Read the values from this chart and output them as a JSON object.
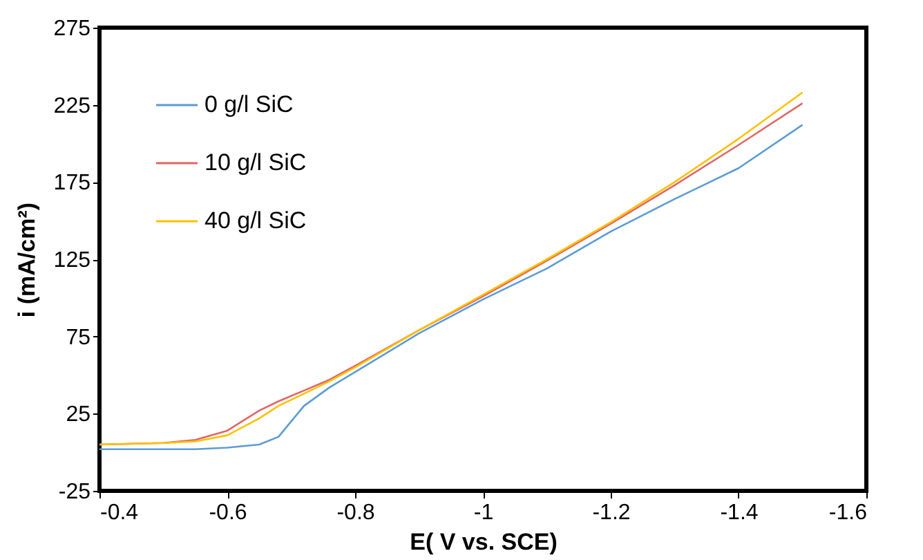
{
  "chart_data": {
    "type": "line",
    "xlabel": "E( V vs. SCE)",
    "ylabel": "i (mA/cm²)",
    "xlim": [
      -0.4,
      -1.6
    ],
    "xticks": [
      -0.4,
      -0.6,
      -0.8,
      -1,
      -1.2,
      -1.4,
      -1.6
    ],
    "ylim": [
      -25,
      275
    ],
    "yticks": [
      -25,
      25,
      75,
      125,
      175,
      225,
      275
    ],
    "legend": "top left",
    "grid": false,
    "marker": "none",
    "line_style": "solid",
    "x": [
      -0.4,
      -0.5,
      -0.55,
      -0.6,
      -0.65,
      -0.68,
      -0.72,
      -0.76,
      -0.8,
      -0.9,
      -1.0,
      -1.1,
      -1.2,
      -1.3,
      -1.4,
      -1.5
    ],
    "series": [
      {
        "name": "0 g/l SiC",
        "color": "#5b9bd5",
        "values": [
          2,
          2,
          2,
          3,
          5,
          10,
          30,
          42,
          52,
          77,
          99,
          119,
          143,
          164,
          184,
          212
        ]
      },
      {
        "name": "10 g/l SiC",
        "color": "#e06666",
        "values": [
          5,
          6,
          8,
          14,
          27,
          33,
          40,
          47,
          56,
          79,
          101,
          124,
          148,
          173,
          199,
          226
        ]
      },
      {
        "name": "40 g/l SiC",
        "color": "#ffc000",
        "values": [
          5,
          6,
          7,
          11,
          22,
          30,
          38,
          46,
          55,
          79,
          102,
          125,
          149,
          175,
          203,
          233
        ]
      }
    ]
  }
}
